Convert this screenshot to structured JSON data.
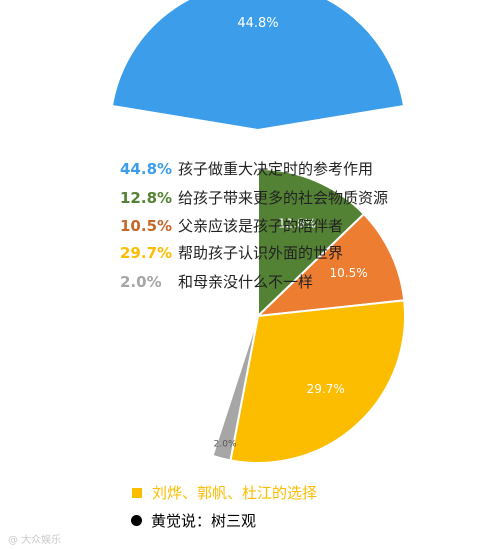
{
  "chart_data": [
    {
      "type": "pie",
      "slices": [
        {
          "label": "孩子做重大决定时的参考作用",
          "value": 44.8,
          "value_label": "44.8%",
          "color": "#3c9eea"
        }
      ]
    },
    {
      "type": "pie",
      "slices": [
        {
          "label": "给孩子带来更多的社会物质资源",
          "value": 12.8,
          "value_label": "12.8%",
          "color": "#548235"
        },
        {
          "label": "父亲应该是孩子的陪伴者",
          "value": 10.5,
          "value_label": "10.5%",
          "color": "#ed7d31"
        },
        {
          "label": "帮助孩子认识外面的世界",
          "value": 29.7,
          "value_label": "29.7%",
          "color": "#fcbd00"
        },
        {
          "label": "和母亲没什么不一样",
          "value": 2.0,
          "value_label": "2.0%",
          "color": "#a6a6a6"
        }
      ]
    }
  ],
  "legend": [
    {
      "pct": "44.8%",
      "label": "孩子做重大决定时的参考作用",
      "color": "#3c9eea"
    },
    {
      "pct": "12.8%",
      "label": "给孩子带来更多的社会物质资源",
      "color": "#548235"
    },
    {
      "pct": "10.5%",
      "label": "父亲应该是孩子的陪伴者",
      "color": "#c5682a"
    },
    {
      "pct": "29.7%",
      "label": "帮助孩子认识外面的世界",
      "color": "#fcbd00"
    },
    {
      "pct": "2.0%",
      "label": "和母亲没什么不一样",
      "color": "#a6a6a6"
    }
  ],
  "footer": {
    "choice_text": "刘烨、郭帆、杜江的选择",
    "choice_color": "#fcbd00",
    "huang_text": "黄觉说：树三观",
    "huang_color": "#000000"
  },
  "watermark": "@ 大众娱乐"
}
